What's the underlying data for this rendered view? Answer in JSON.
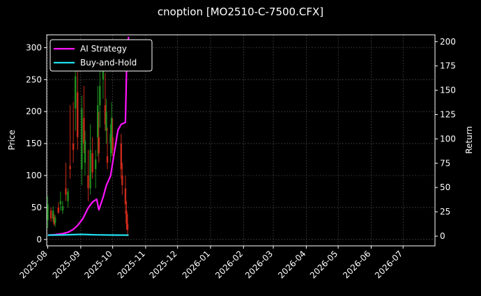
{
  "chart_data": {
    "type": "candlestick+line",
    "title": "cnoption [MO2510-C-7500.CFX]",
    "xlabel": "",
    "ylabel_left": "Price",
    "ylabel_right": "Return",
    "ylim_left": [
      -10,
      320
    ],
    "ylim_right": [
      -10,
      207
    ],
    "y_ticks_left": [
      "0",
      "50",
      "100",
      "150",
      "200",
      "250",
      "300"
    ],
    "y_ticks_right": [
      "0",
      "25",
      "50",
      "75",
      "100",
      "125",
      "150",
      "175",
      "200"
    ],
    "x_range": [
      "2025-07-31",
      "2026-07-31"
    ],
    "x_tick_labels": [
      "2025-08",
      "2025-09",
      "2025-10",
      "2025-11",
      "2025-12",
      "2026-01",
      "2026-02",
      "2026-03",
      "2026-04",
      "2026-05",
      "2026-06",
      "2026-07"
    ],
    "grid": true,
    "legend_position": "top-left",
    "colors": {
      "background": "#000000",
      "up_candle": "#1f8f1f",
      "down_candle": "#cc2a1a",
      "ai_strategy": "#ff14ff",
      "buy_and_hold": "#22e0f0",
      "grid": "#555555"
    },
    "series": [
      {
        "name": "AI Strategy",
        "axis": "right",
        "x": [
          "2025-08-01",
          "2025-08-08",
          "2025-08-15",
          "2025-08-20",
          "2025-08-25",
          "2025-08-29",
          "2025-09-03",
          "2025-09-08",
          "2025-09-12",
          "2025-09-16",
          "2025-09-18",
          "2025-09-22",
          "2025-09-25",
          "2025-09-29",
          "2025-10-02",
          "2025-10-06",
          "2025-10-09",
          "2025-10-13",
          "2025-10-14",
          "2025-10-15",
          "2025-10-16"
        ],
        "values": [
          1,
          1.5,
          2.5,
          4,
          7,
          11,
          18,
          29,
          35,
          38,
          27,
          40,
          52,
          62,
          82,
          109,
          115,
          117,
          170,
          195,
          205
        ]
      },
      {
        "name": "Buy-and-Hold",
        "axis": "right",
        "x": [
          "2025-08-01",
          "2025-08-15",
          "2025-09-01",
          "2025-09-15",
          "2025-10-01",
          "2025-10-16"
        ],
        "values": [
          1,
          1.2,
          1.8,
          1.3,
          1.1,
          1.0
        ]
      }
    ],
    "candles": [
      {
        "date": "2025-08-01",
        "open": 30,
        "high": 68,
        "low": 18,
        "close": 55
      },
      {
        "date": "2025-08-04",
        "open": 45,
        "high": 50,
        "low": 28,
        "close": 33
      },
      {
        "date": "2025-08-06",
        "open": 32,
        "high": 52,
        "low": 27,
        "close": 45
      },
      {
        "date": "2025-08-07",
        "open": 35,
        "high": 40,
        "low": 22,
        "close": 24
      },
      {
        "date": "2025-08-08",
        "open": 26,
        "high": 38,
        "low": 20,
        "close": 34
      },
      {
        "date": "2025-08-11",
        "open": 50,
        "high": 58,
        "low": 40,
        "close": 42
      },
      {
        "date": "2025-08-13",
        "open": 55,
        "high": 75,
        "low": 45,
        "close": 60
      },
      {
        "date": "2025-08-15",
        "open": 45,
        "high": 60,
        "low": 40,
        "close": 52
      },
      {
        "date": "2025-08-18",
        "open": 80,
        "high": 120,
        "low": 60,
        "close": 70
      },
      {
        "date": "2025-08-20",
        "open": 60,
        "high": 80,
        "low": 50,
        "close": 75
      },
      {
        "date": "2025-08-22",
        "open": 115,
        "high": 210,
        "low": 95,
        "close": 110
      },
      {
        "date": "2025-08-25",
        "open": 150,
        "high": 215,
        "low": 120,
        "close": 140
      },
      {
        "date": "2025-08-27",
        "open": 205,
        "high": 270,
        "low": 170,
        "close": 255
      },
      {
        "date": "2025-08-29",
        "open": 230,
        "high": 280,
        "low": 140,
        "close": 160
      },
      {
        "date": "2025-09-02",
        "open": 110,
        "high": 225,
        "low": 85,
        "close": 205
      },
      {
        "date": "2025-09-04",
        "open": 190,
        "high": 240,
        "low": 135,
        "close": 150
      },
      {
        "date": "2025-09-05",
        "open": 120,
        "high": 170,
        "low": 100,
        "close": 155
      },
      {
        "date": "2025-09-08",
        "open": 100,
        "high": 140,
        "low": 60,
        "close": 80
      },
      {
        "date": "2025-09-10",
        "open": 80,
        "high": 180,
        "low": 70,
        "close": 140
      },
      {
        "date": "2025-09-12",
        "open": 135,
        "high": 160,
        "low": 95,
        "close": 105
      },
      {
        "date": "2025-09-15",
        "open": 110,
        "high": 140,
        "low": 80,
        "close": 125
      },
      {
        "date": "2025-09-17",
        "open": 160,
        "high": 240,
        "low": 130,
        "close": 210
      },
      {
        "date": "2025-09-18",
        "open": 160,
        "high": 200,
        "low": 120,
        "close": 135
      },
      {
        "date": "2025-09-19",
        "open": 210,
        "high": 265,
        "low": 175,
        "close": 240
      },
      {
        "date": "2025-09-22",
        "open": 250,
        "high": 300,
        "low": 220,
        "close": 290
      },
      {
        "date": "2025-09-24",
        "open": 210,
        "high": 260,
        "low": 170,
        "close": 180
      },
      {
        "date": "2025-09-25",
        "open": 170,
        "high": 220,
        "low": 150,
        "close": 200
      },
      {
        "date": "2025-09-26",
        "open": 130,
        "high": 175,
        "low": 110,
        "close": 120
      },
      {
        "date": "2025-09-29",
        "open": 150,
        "high": 180,
        "low": 120,
        "close": 165
      },
      {
        "date": "2025-09-30",
        "open": 135,
        "high": 215,
        "low": 130,
        "close": 190
      },
      {
        "date": "2025-10-01",
        "open": 160,
        "high": 190,
        "low": 130,
        "close": 140
      },
      {
        "date": "2025-10-09",
        "open": 150,
        "high": 165,
        "low": 95,
        "close": 110
      },
      {
        "date": "2025-10-10",
        "open": 100,
        "high": 120,
        "low": 70,
        "close": 85
      },
      {
        "date": "2025-10-13",
        "open": 80,
        "high": 100,
        "low": 40,
        "close": 55
      },
      {
        "date": "2025-10-14",
        "open": 45,
        "high": 60,
        "low": 15,
        "close": 25
      },
      {
        "date": "2025-10-15",
        "open": 25,
        "high": 40,
        "low": 5,
        "close": 15
      }
    ]
  }
}
